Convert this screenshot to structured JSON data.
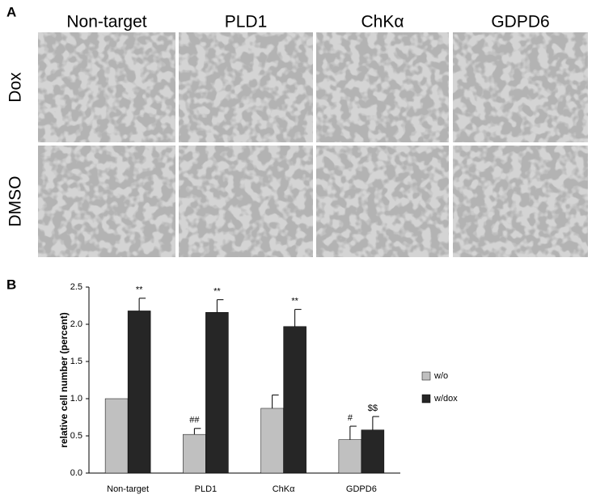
{
  "panel_a": {
    "letter": "A",
    "columns": [
      "Non-target",
      "PLD1",
      "ChKα",
      "GDPD6"
    ],
    "rows": [
      "Dox",
      "DMSO"
    ]
  },
  "chart_data": {
    "type": "bar",
    "letter": "B",
    "ylabel": "relative cell number (percent)",
    "categories": [
      "Non-target",
      "PLD1",
      "ChKα",
      "GDPD6"
    ],
    "series": [
      {
        "name": "w/o",
        "color": "#c0c0c0",
        "values": [
          1.0,
          0.52,
          0.87,
          0.45
        ],
        "errors": [
          0,
          0.08,
          0.18,
          0.18
        ],
        "significance": [
          null,
          "##",
          null,
          "#"
        ]
      },
      {
        "name": "w/dox",
        "color": "#262626",
        "values": [
          2.18,
          2.16,
          1.97,
          0.58
        ],
        "errors": [
          0.17,
          0.17,
          0.23,
          0.18
        ],
        "significance": [
          "**",
          "**",
          "**",
          "$$"
        ]
      }
    ],
    "ylim": [
      0,
      2.5
    ],
    "yticks": [
      {
        "value": 0,
        "label": "0.0"
      },
      {
        "value": 0.5,
        "label": "0.5"
      },
      {
        "value": 1,
        "label": "1.0"
      },
      {
        "value": 1.5,
        "label": "1.5"
      },
      {
        "value": 2,
        "label": "2.0"
      },
      {
        "value": 2.5,
        "label": "2.5"
      }
    ],
    "grid": false,
    "legend": "right"
  }
}
